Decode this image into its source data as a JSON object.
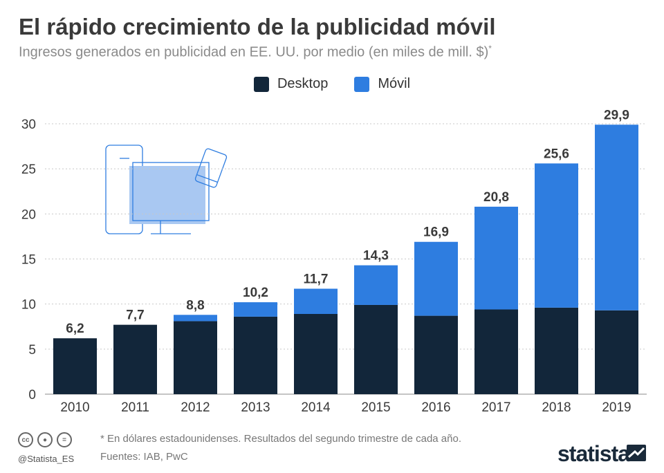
{
  "header": {
    "title": "El rápido crecimiento de la publicidad móvil",
    "subtitle": "Ingresos generados en publicidad en EE. UU. por medio (en miles de mill. $)",
    "subtitle_mark": "*"
  },
  "legend": {
    "desktop_label": "Desktop",
    "mobile_label": "Móvil"
  },
  "colors": {
    "desktop": "#12263a",
    "mobile": "#2e7de0",
    "grid": "#c8c8c8",
    "label": "#3a3a3a"
  },
  "chart_data": {
    "type": "bar",
    "stacked": true,
    "categories": [
      "2010",
      "2011",
      "2012",
      "2013",
      "2014",
      "2015",
      "2016",
      "2017",
      "2018",
      "2019"
    ],
    "series": [
      {
        "name": "Desktop",
        "values": [
          6.2,
          7.7,
          8.1,
          8.6,
          8.9,
          9.9,
          8.7,
          9.4,
          9.6,
          9.3
        ]
      },
      {
        "name": "Móvil",
        "values": [
          0,
          0,
          0.7,
          1.6,
          2.8,
          4.4,
          8.2,
          11.4,
          16.0,
          20.6
        ]
      }
    ],
    "totals": [
      "6,2",
      "7,7",
      "8,8",
      "10,2",
      "11,7",
      "14,3",
      "16,9",
      "20,8",
      "25,6",
      "29,9"
    ],
    "yticks": [
      "0",
      "5",
      "10",
      "15",
      "20",
      "25",
      "30"
    ],
    "ylim": [
      0,
      30
    ],
    "grid": true,
    "legend_position": "top-center"
  },
  "footer": {
    "note": "* En dólares estadounidenses. Resultados del segundo trimestre de cada año.",
    "sources": "Fuentes: IAB, PwC",
    "handle": "@Statista_ES",
    "brand": "statista",
    "cc_icons": [
      "cc",
      "by",
      "="
    ]
  }
}
